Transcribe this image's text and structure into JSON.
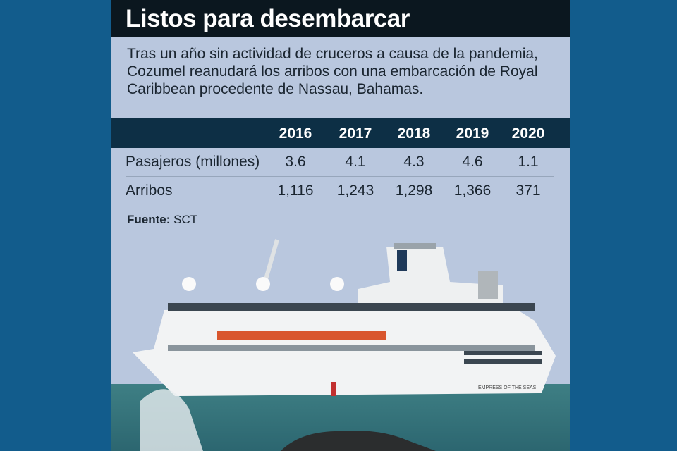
{
  "title": "Listos para desembarcar",
  "intro": "Tras un año sin actividad de cruceros a causa de la pandemia, Cozumel reanudará los arribos con una embarcación de Royal Caribbean procedente de Nassau, Bahamas.",
  "chart_data": {
    "type": "table",
    "columns": [
      "2016",
      "2017",
      "2018",
      "2019",
      "2020"
    ],
    "rows": [
      {
        "label": "Pasajeros (millones)",
        "values": [
          "3.6",
          "4.1",
          "4.3",
          "4.6",
          "1.1"
        ]
      },
      {
        "label": "Arribos",
        "values": [
          "1,116",
          "1,243",
          "1,298",
          "1,366",
          "371"
        ]
      }
    ]
  },
  "source": {
    "label": "Fuente:",
    "value": "SCT"
  },
  "photo": {
    "ship_name": "EMPRESS OF THE SEAS"
  },
  "colors": {
    "background": "#125c8c",
    "title_bar": "#0b171f",
    "panel": "#b9c7de",
    "table_header": "#0d2f45"
  }
}
